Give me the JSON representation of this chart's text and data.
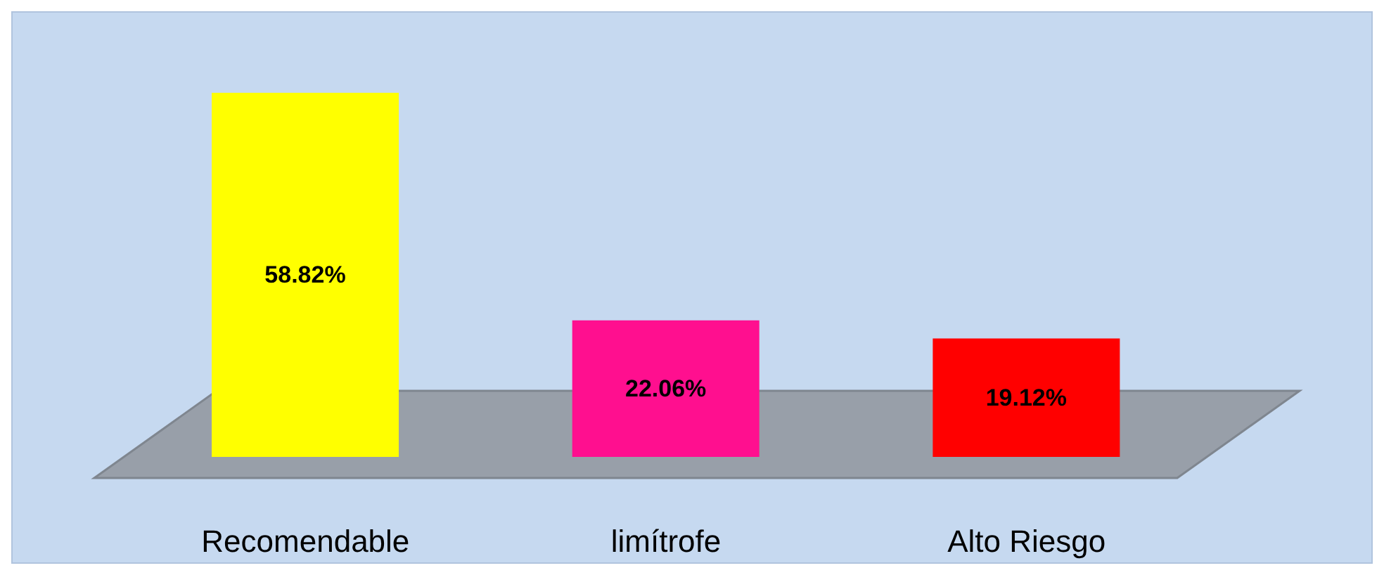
{
  "chart_data": {
    "type": "bar",
    "categories": [
      "Recomendable",
      "limítrofe",
      "Alto Riesgo"
    ],
    "values": [
      58.82,
      22.06,
      19.12
    ],
    "colors": [
      "#ffff00",
      "#ff0f8f",
      "#ff0000"
    ],
    "value_labels": [
      "58.82%",
      "22.06%",
      "19.12%"
    ]
  }
}
